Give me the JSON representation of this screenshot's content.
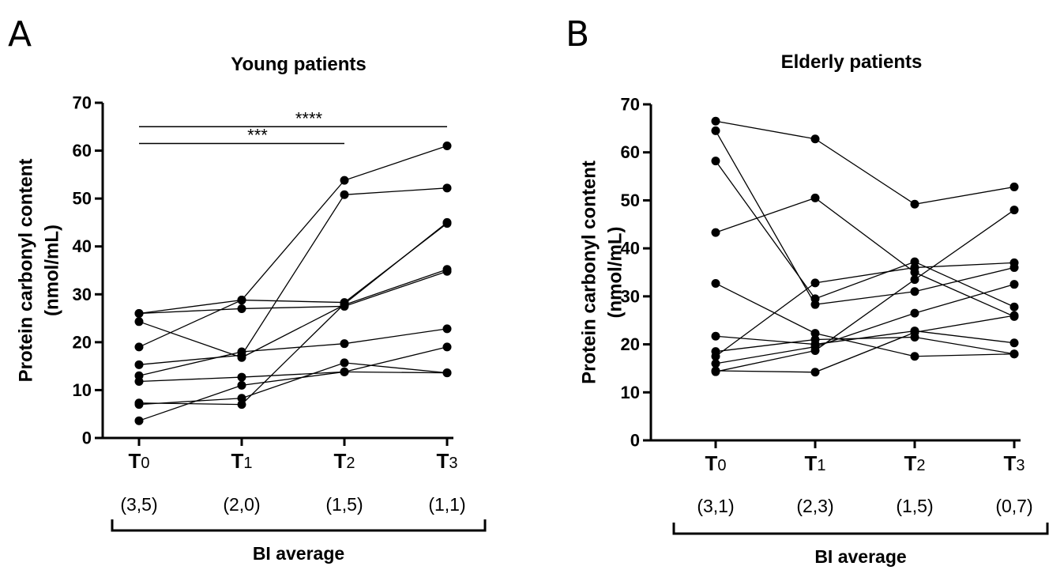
{
  "chart_data": [
    {
      "type": "line",
      "panel_label": "A",
      "title": "Young patients",
      "ylabel_line1": "Protein carbonyl content",
      "ylabel_line2": "(nmol/mL)",
      "ylim": [
        0,
        70
      ],
      "yticks": [
        0,
        10,
        20,
        30,
        40,
        50,
        60,
        70
      ],
      "x_categories": [
        {
          "main": "T",
          "sub": "0",
          "bi": "(3,5)"
        },
        {
          "main": "T",
          "sub": "1",
          "bi": "(2,0)"
        },
        {
          "main": "T",
          "sub": "2",
          "bi": "(1,5)"
        },
        {
          "main": "T",
          "sub": "3",
          "bi": "(1,1)"
        }
      ],
      "bracket_label": "BI average",
      "significance": [
        {
          "from": 0,
          "to": 3,
          "y": 65.0,
          "label": "****"
        },
        {
          "from": 0,
          "to": 2,
          "y": 61.5,
          "label": "***"
        }
      ],
      "series": [
        {
          "values": [
            26.0,
            28.8,
            28.3,
            44.8
          ]
        },
        {
          "values": [
            24.3,
            16.8,
            27.8,
            35.2
          ]
        },
        {
          "values": [
            19.0,
            28.8,
            53.8,
            61.0
          ]
        },
        {
          "values": [
            15.3,
            17.3,
            50.8,
            52.2
          ]
        },
        {
          "values": [
            13.0,
            18.0,
            19.7,
            22.8
          ]
        },
        {
          "values": [
            11.8,
            12.7,
            13.8,
            13.6
          ]
        },
        {
          "values": [
            7.3,
            7.0,
            28.0,
            45.0
          ]
        },
        {
          "values": [
            7.0,
            8.3,
            15.7,
            13.6
          ]
        },
        {
          "values": [
            3.6,
            11.0,
            13.8,
            19.0
          ]
        },
        {
          "values": [
            26.0,
            27.0,
            27.5,
            34.8
          ]
        }
      ]
    },
    {
      "type": "line",
      "panel_label": "B",
      "title": "Elderly patients",
      "ylabel_line1": "Protein carbonyl content",
      "ylabel_line2": "(nmol/mL)",
      "ylim": [
        0,
        70
      ],
      "yticks": [
        0,
        10,
        20,
        30,
        40,
        50,
        60,
        70
      ],
      "x_categories": [
        {
          "main": "T",
          "sub": "0",
          "bi": "(3,1)"
        },
        {
          "main": "T",
          "sub": "1",
          "bi": "(2,3)"
        },
        {
          "main": "T",
          "sub": "2",
          "bi": "(1,5)"
        },
        {
          "main": "T",
          "sub": "3",
          "bi": "(0,7)"
        }
      ],
      "bracket_label": "BI average",
      "significance": [],
      "series": [
        {
          "values": [
            66.5,
            62.8,
            49.2,
            52.8
          ]
        },
        {
          "values": [
            64.5,
            28.3,
            31.0,
            36.0
          ]
        },
        {
          "values": [
            58.2,
            29.5,
            37.2,
            27.8
          ]
        },
        {
          "values": [
            43.3,
            50.5,
            35.0,
            25.8
          ]
        },
        {
          "values": [
            32.7,
            22.3,
            17.5,
            18.0
          ]
        },
        {
          "values": [
            21.7,
            20.0,
            22.8,
            20.3
          ]
        },
        {
          "values": [
            18.5,
            21.0,
            21.5,
            18.0
          ]
        },
        {
          "values": [
            17.5,
            32.8,
            36.0,
            37.0
          ]
        },
        {
          "values": [
            16.0,
            19.5,
            26.5,
            32.5
          ]
        },
        {
          "values": [
            14.3,
            18.7,
            33.5,
            48.0
          ]
        },
        {
          "values": [
            14.5,
            14.2,
            22.5,
            26.0
          ]
        }
      ]
    }
  ]
}
